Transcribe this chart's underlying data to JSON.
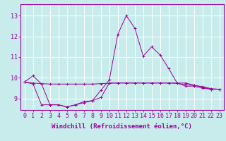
{
  "xlabel": "Windchill (Refroidissement éolien,°C)",
  "background_color": "#c8ecec",
  "grid_color": "#ffffff",
  "line_color": "#990099",
  "hours": [
    0,
    1,
    2,
    3,
    4,
    5,
    6,
    7,
    8,
    9,
    10,
    11,
    12,
    13,
    14,
    15,
    16,
    17,
    18,
    19,
    20,
    21,
    22,
    23
  ],
  "s1": [
    9.8,
    10.1,
    9.7,
    8.7,
    8.7,
    8.6,
    8.7,
    8.8,
    8.9,
    9.4,
    9.9,
    12.1,
    13.0,
    12.4,
    11.05,
    11.5,
    11.1,
    10.45,
    9.75,
    9.6,
    9.6,
    9.5,
    9.45,
    9.45
  ],
  "s2": [
    9.8,
    9.75,
    9.72,
    9.7,
    9.7,
    9.7,
    9.7,
    9.7,
    9.7,
    9.72,
    9.74,
    9.75,
    9.75,
    9.75,
    9.75,
    9.75,
    9.75,
    9.75,
    9.73,
    9.68,
    9.63,
    9.58,
    9.48,
    9.45
  ],
  "s3": [
    9.8,
    9.7,
    8.7,
    8.7,
    8.7,
    8.6,
    8.7,
    8.85,
    8.9,
    9.05,
    9.75,
    9.75,
    9.75,
    9.75,
    9.75,
    9.75,
    9.75,
    9.75,
    9.75,
    9.75,
    9.65,
    9.55,
    9.45,
    9.45
  ],
  "ylim_min": 8.45,
  "ylim_max": 13.55,
  "yticks": [
    9,
    10,
    11,
    12,
    13
  ],
  "label_fontsize": 6.5,
  "tick_fontsize": 6.0
}
